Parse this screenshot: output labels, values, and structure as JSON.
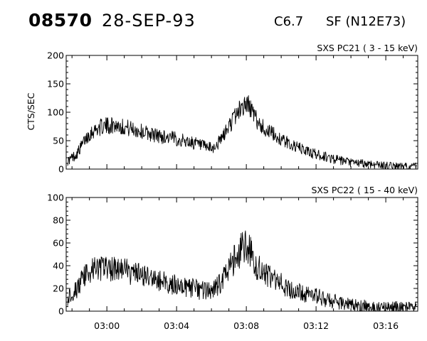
{
  "header": {
    "event_number": "08570",
    "date": "28-SEP-93",
    "goes_class": "C6.7",
    "flare": "SF (N12E73)"
  },
  "chart_data": [
    {
      "type": "line",
      "title": "SXS PC21  (  3 - 15 keV)",
      "ylabel": "CTS/SEC",
      "xlabel": "",
      "xlim": [
        "02:57:40",
        "03:17:50"
      ],
      "ylim": [
        0,
        200
      ],
      "yticks": [
        "0",
        "50",
        "100",
        "150",
        "200"
      ],
      "xticks": [
        "03:00",
        "03:04",
        "03:08",
        "03:12",
        "03:16"
      ],
      "grid": false,
      "series": [
        {
          "points": [
            [
              "02:57:45",
              14
            ],
            [
              "02:58:00",
              20
            ],
            [
              "02:58:15",
              26
            ],
            [
              "02:58:30",
              38
            ],
            [
              "02:58:45",
              52
            ],
            [
              "02:59:00",
              62
            ],
            [
              "02:59:15",
              68
            ],
            [
              "02:59:30",
              72
            ],
            [
              "02:59:45",
              75
            ],
            [
              "03:00:00",
              76
            ],
            [
              "03:00:15",
              77
            ],
            [
              "03:00:30",
              78
            ],
            [
              "03:00:45",
              76
            ],
            [
              "03:01:00",
              74
            ],
            [
              "03:01:15",
              72
            ],
            [
              "03:01:30",
              70
            ],
            [
              "03:02:00",
              66
            ],
            [
              "03:02:30",
              62
            ],
            [
              "03:03:00",
              58
            ],
            [
              "03:03:30",
              56
            ],
            [
              "03:04:00",
              53
            ],
            [
              "03:04:30",
              49
            ],
            [
              "03:05:00",
              46
            ],
            [
              "03:05:30",
              40
            ],
            [
              "03:06:00",
              36
            ],
            [
              "03:06:15",
              40
            ],
            [
              "03:06:30",
              50
            ],
            [
              "03:06:45",
              62
            ],
            [
              "03:07:00",
              75
            ],
            [
              "03:07:15",
              88
            ],
            [
              "03:07:30",
              100
            ],
            [
              "03:07:45",
              110
            ],
            [
              "03:08:00",
              114
            ],
            [
              "03:08:10",
              112
            ],
            [
              "03:08:20",
              102
            ],
            [
              "03:08:30",
              90
            ],
            [
              "03:08:45",
              80
            ],
            [
              "03:09:00",
              72
            ],
            [
              "03:09:30",
              62
            ],
            [
              "03:10:00",
              52
            ],
            [
              "03:10:30",
              44
            ],
            [
              "03:11:00",
              37
            ],
            [
              "03:11:30",
              31
            ],
            [
              "03:12:00",
              26
            ],
            [
              "03:12:30",
              22
            ],
            [
              "03:13:00",
              18
            ],
            [
              "03:13:30",
              14
            ],
            [
              "03:14:00",
              11
            ],
            [
              "03:14:30",
              10
            ],
            [
              "03:15:00",
              9
            ],
            [
              "03:15:30",
              8
            ],
            [
              "03:16:00",
              6
            ],
            [
              "03:16:30",
              5
            ],
            [
              "03:17:00",
              4
            ],
            [
              "03:17:45",
              4
            ]
          ]
        }
      ]
    },
    {
      "type": "line",
      "title": "SXS PC22  ( 15 - 40 keV)",
      "ylabel": "",
      "xlabel": "",
      "xlim": [
        "02:57:40",
        "03:17:50"
      ],
      "ylim": [
        0,
        100
      ],
      "yticks": [
        "0",
        "20",
        "40",
        "60",
        "80",
        "100"
      ],
      "xticks": [
        "03:00",
        "03:04",
        "03:08",
        "03:12",
        "03:16"
      ],
      "grid": false,
      "series": [
        {
          "points": [
            [
              "02:57:45",
              12
            ],
            [
              "02:58:00",
              16
            ],
            [
              "02:58:15",
              19
            ],
            [
              "02:58:30",
              25
            ],
            [
              "02:58:45",
              31
            ],
            [
              "02:59:00",
              35
            ],
            [
              "02:59:15",
              37
            ],
            [
              "02:59:30",
              38
            ],
            [
              "02:59:45",
              38
            ],
            [
              "03:00:00",
              37
            ],
            [
              "03:00:15",
              38
            ],
            [
              "03:00:30",
              38
            ],
            [
              "03:00:45",
              37
            ],
            [
              "03:01:00",
              36
            ],
            [
              "03:01:30",
              33
            ],
            [
              "03:02:00",
              31
            ],
            [
              "03:02:30",
              29
            ],
            [
              "03:03:00",
              27
            ],
            [
              "03:03:30",
              25
            ],
            [
              "03:04:00",
              23
            ],
            [
              "03:04:30",
              22
            ],
            [
              "03:05:00",
              20
            ],
            [
              "03:05:30",
              18
            ],
            [
              "03:06:00",
              17
            ],
            [
              "03:06:15",
              20
            ],
            [
              "03:06:30",
              25
            ],
            [
              "03:06:45",
              31
            ],
            [
              "03:07:00",
              37
            ],
            [
              "03:07:15",
              44
            ],
            [
              "03:07:30",
              50
            ],
            [
              "03:07:45",
              55
            ],
            [
              "03:08:00",
              57
            ],
            [
              "03:08:10",
              55
            ],
            [
              "03:08:20",
              48
            ],
            [
              "03:08:30",
              42
            ],
            [
              "03:08:45",
              37
            ],
            [
              "03:09:00",
              33
            ],
            [
              "03:09:30",
              28
            ],
            [
              "03:10:00",
              24
            ],
            [
              "03:10:30",
              20
            ],
            [
              "03:11:00",
              17
            ],
            [
              "03:11:30",
              15
            ],
            [
              "03:12:00",
              13
            ],
            [
              "03:12:30",
              11
            ],
            [
              "03:13:00",
              9
            ],
            [
              "03:13:30",
              7
            ],
            [
              "03:14:00",
              5
            ],
            [
              "03:14:30",
              4
            ],
            [
              "03:15:00",
              4
            ],
            [
              "03:15:30",
              4
            ],
            [
              "03:16:00",
              3
            ],
            [
              "03:16:30",
              3
            ],
            [
              "03:17:00",
              3
            ],
            [
              "03:17:45",
              3
            ]
          ]
        }
      ]
    }
  ]
}
